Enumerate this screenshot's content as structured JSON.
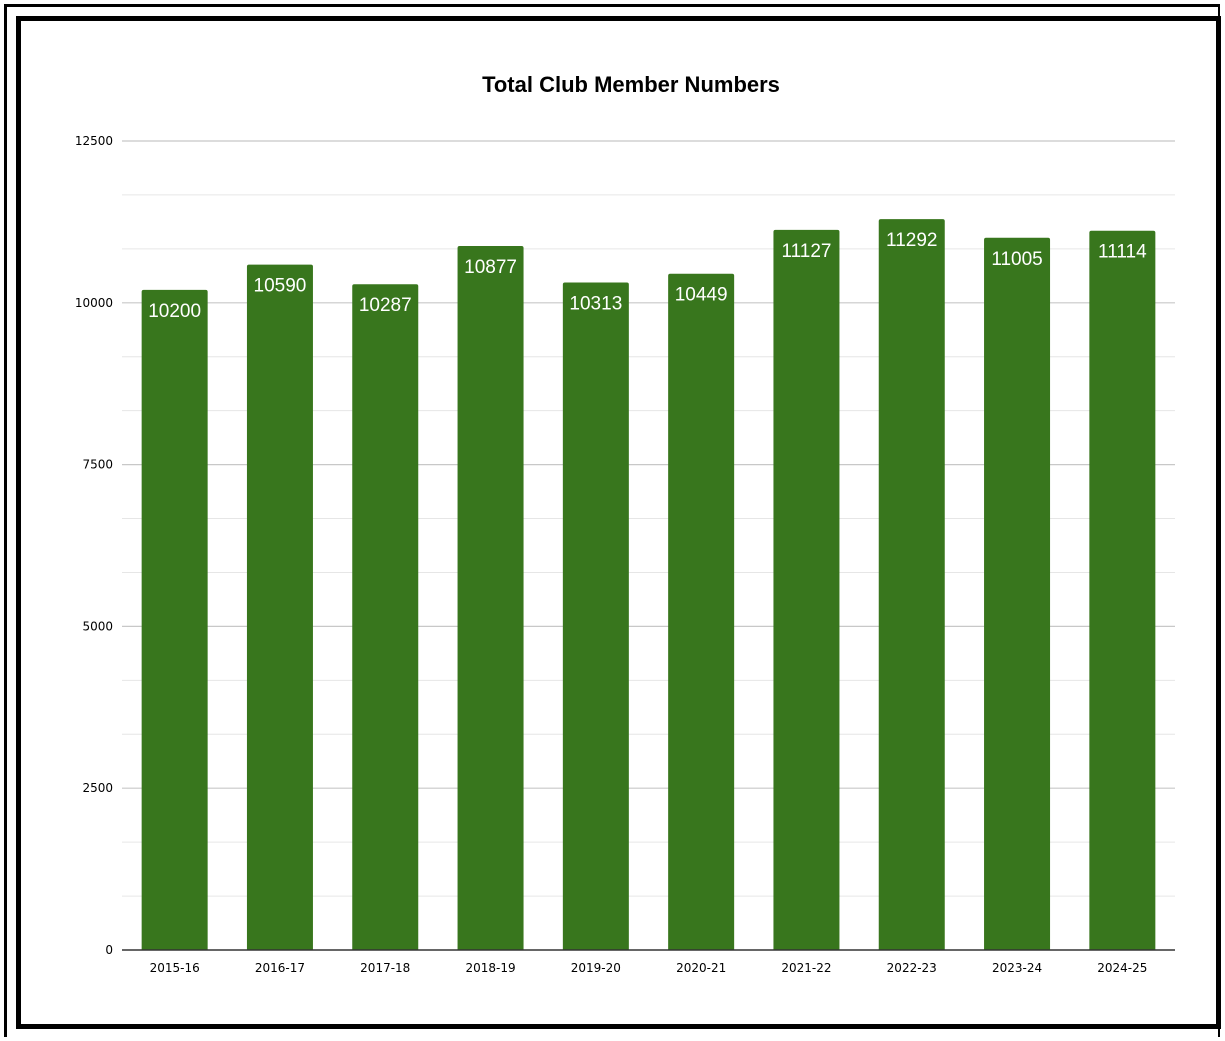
{
  "chart_data": {
    "type": "bar",
    "title": "Total Club Member Numbers",
    "xlabel": "",
    "ylabel": "",
    "categories": [
      "2015-16",
      "2016-17",
      "2017-18",
      "2018-19",
      "2019-20",
      "2020-21",
      "2021-22",
      "2022-23",
      "2023-24",
      "2024-25"
    ],
    "values": [
      10200,
      10590,
      10287,
      10877,
      10313,
      10449,
      11127,
      11292,
      11005,
      11114
    ],
    "data_labels": [
      "10200",
      "10590",
      "10287",
      "10877",
      "10313",
      "10449",
      "11127",
      "11292",
      "11005",
      "11114"
    ],
    "ylim": [
      0,
      12500
    ],
    "yticks": [
      0,
      2500,
      5000,
      7500,
      10000,
      12500
    ],
    "ytick_labels": [
      "0",
      "2500",
      "5000",
      "7500",
      "10000",
      "12500"
    ],
    "minor_gridlines": true,
    "grid": true,
    "legend": "none",
    "colors": {
      "bar": "#38761d",
      "major_grid": "#c8c8c8",
      "minor_grid": "#e6e6e6",
      "axis": "#333333"
    }
  }
}
